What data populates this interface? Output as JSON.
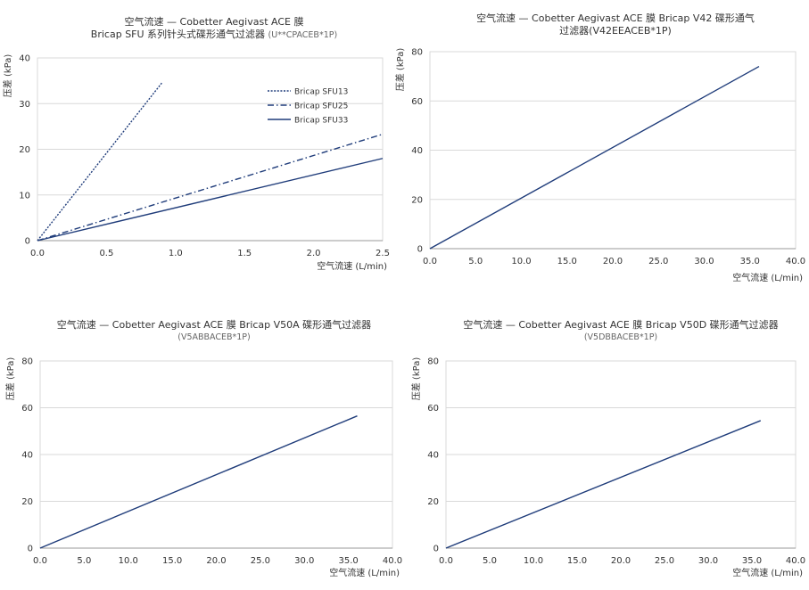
{
  "chart_data": [
    {
      "type": "line",
      "title_lines": [
        "空气流速 — Cobetter Aegivast ACE 膜",
        "Bricap SFU 系列针头式碟形通气过滤器"
      ],
      "title_suffix": "(U**CPACEB*1P)",
      "xlabel": "空气流速 (L/min)",
      "ylabel": "压差 (kPa)",
      "xlim": [
        0,
        2.5
      ],
      "ylim": [
        0,
        40
      ],
      "xticks": [
        "0.0",
        "0.5",
        "1.0",
        "1.5",
        "2.0",
        "2.5"
      ],
      "yticks": [
        "0",
        "10",
        "20",
        "30",
        "40"
      ],
      "grid": "horizontal",
      "legend_position": "top-right",
      "series": [
        {
          "name": "Bricap SFU13",
          "style": "dotted",
          "x": [
            0,
            0.9
          ],
          "y": [
            0,
            34.5
          ]
        },
        {
          "name": "Bricap SFU25",
          "style": "dashdot",
          "x": [
            0,
            2.5
          ],
          "y": [
            0,
            23.3
          ]
        },
        {
          "name": "Bricap SFU33",
          "style": "solid",
          "x": [
            0,
            2.5
          ],
          "y": [
            0,
            18
          ]
        }
      ]
    },
    {
      "type": "line",
      "title_lines": [
        "空气流速 — Cobetter Aegivast ACE 膜 Bricap V42 碟形通气",
        "过滤器(V42EEACEB*1P)"
      ],
      "xlabel": "空气流速 (L/min)",
      "ylabel": "压差 (kPa)",
      "xlim": [
        0,
        40
      ],
      "ylim": [
        0,
        80
      ],
      "xticks": [
        "0.0",
        "5.0",
        "10.0",
        "15.0",
        "20.0",
        "25.0",
        "30.0",
        "35.0",
        "40.0"
      ],
      "yticks": [
        "0",
        "20",
        "40",
        "60",
        "80"
      ],
      "grid": "horizontal",
      "series": [
        {
          "style": "solid",
          "x": [
            0,
            36
          ],
          "y": [
            0,
            74
          ]
        }
      ]
    },
    {
      "type": "line",
      "title_lines": [
        "空气流速 — Cobetter Aegivast ACE 膜 Bricap V50A 碟形通气过滤器",
        "(V5ABBACEB*1P)"
      ],
      "xlabel": "空气流速 (L/min)",
      "ylabel": "压差 (kPa)",
      "xlim": [
        0,
        40
      ],
      "ylim": [
        0,
        80
      ],
      "xticks": [
        "0.0",
        "5.0",
        "10.0",
        "15.0",
        "20.0",
        "25.0",
        "30.0",
        "35.0",
        "40.0"
      ],
      "yticks": [
        "0",
        "20",
        "40",
        "60",
        "80"
      ],
      "grid": "horizontal",
      "series": [
        {
          "style": "solid",
          "x": [
            0,
            36
          ],
          "y": [
            0,
            56.5
          ]
        }
      ]
    },
    {
      "type": "line",
      "title_lines": [
        "空气流速 — Cobetter Aegivast ACE 膜 Bricap V50D 碟形通气过滤器",
        "(V5DBBACEB*1P)"
      ],
      "xlabel": "空气流速 (L/min)",
      "ylabel": "压差 (kPa)",
      "xlim": [
        0,
        40
      ],
      "ylim": [
        0,
        80
      ],
      "xticks": [
        "0.0",
        "5.0",
        "10.0",
        "15.0",
        "20.0",
        "25.0",
        "30.0",
        "35.0",
        "40.0"
      ],
      "yticks": [
        "0",
        "20",
        "40",
        "60",
        "80"
      ],
      "grid": "horizontal",
      "series": [
        {
          "style": "solid",
          "x": [
            0,
            36
          ],
          "y": [
            0,
            54.5
          ]
        }
      ]
    }
  ],
  "colors": {
    "line": "#1f3c7a",
    "grid": "#d9d9d9",
    "axis": "#999999",
    "text": "#333333"
  }
}
